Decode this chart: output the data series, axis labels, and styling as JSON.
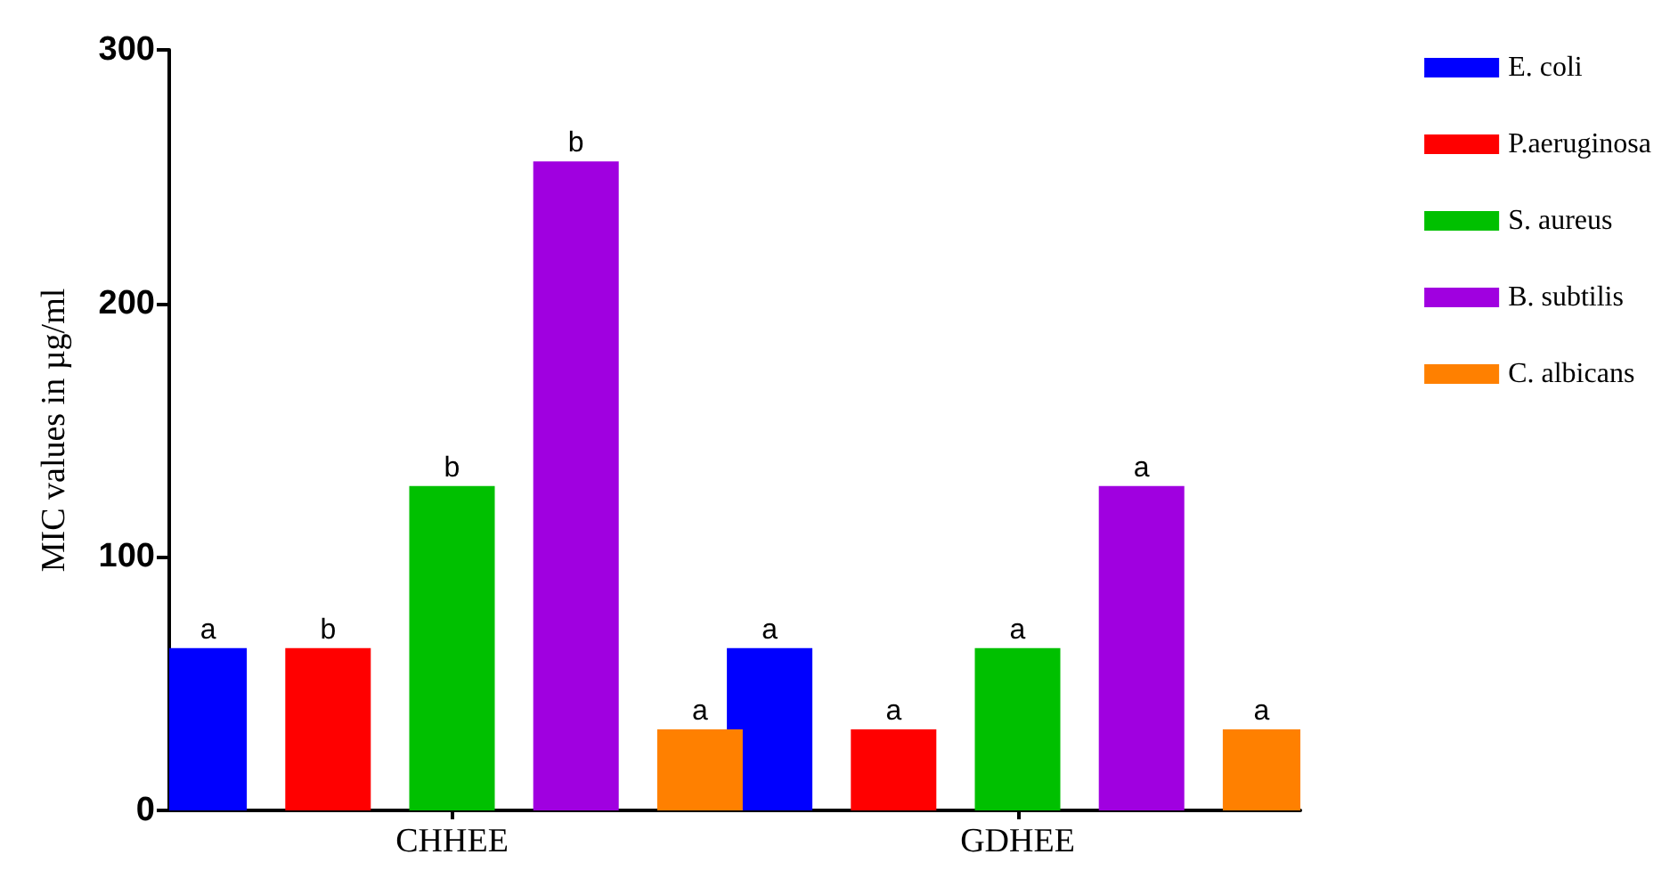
{
  "chart_data": {
    "type": "bar",
    "ylabel": "MIC values in µg/ml",
    "categories": [
      "CHHEE",
      "GDHEE"
    ],
    "series": [
      {
        "name": "E. coli",
        "color": "#0000ff",
        "values": [
          64,
          64
        ],
        "value_labels": [
          "a",
          "a"
        ]
      },
      {
        "name": "P.aeruginosa",
        "color": "#ff0000",
        "values": [
          64,
          32
        ],
        "value_labels": [
          "b",
          "a"
        ]
      },
      {
        "name": "S. aureus",
        "color": "#00c000",
        "values": [
          128,
          64
        ],
        "value_labels": [
          "b",
          "a"
        ]
      },
      {
        "name": "B. subtilis",
        "color": "#a000e0",
        "values": [
          256,
          128
        ],
        "value_labels": [
          "b",
          "a"
        ]
      },
      {
        "name": "C. albicans",
        "color": "#ff8000",
        "values": [
          32,
          32
        ],
        "value_labels": [
          "a",
          "a"
        ]
      }
    ],
    "ylim": [
      0,
      300
    ],
    "yticks": [
      0,
      100,
      200,
      300
    ],
    "grid": false,
    "legend": "top right"
  }
}
